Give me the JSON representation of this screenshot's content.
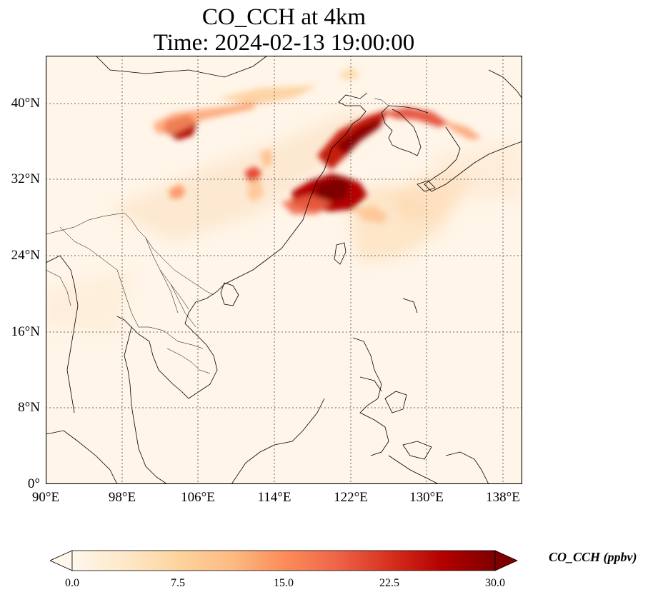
{
  "title": {
    "line1": "CO_CCH at 4km",
    "line2": "Time: 2024-02-13 19:00:00"
  },
  "map": {
    "lon_range": [
      90,
      140
    ],
    "lat_range": [
      0,
      45
    ],
    "projection": "PlateCarree",
    "gridlines": "dotted"
  },
  "axes": {
    "y_ticks": [
      {
        "value": 40,
        "label": "40°N"
      },
      {
        "value": 32,
        "label": "32°N"
      },
      {
        "value": 24,
        "label": "24°N"
      },
      {
        "value": 16,
        "label": "16°N"
      },
      {
        "value": 8,
        "label": "8°N"
      },
      {
        "value": 0,
        "label": "0°"
      }
    ],
    "x_ticks": [
      {
        "value": 90,
        "label": "90°E"
      },
      {
        "value": 98,
        "label": "98°E"
      },
      {
        "value": 106,
        "label": "106°E"
      },
      {
        "value": 114,
        "label": "114°E"
      },
      {
        "value": 122,
        "label": "122°E"
      },
      {
        "value": 130,
        "label": "130°E"
      },
      {
        "value": 138,
        "label": "138°E"
      }
    ]
  },
  "colorbar": {
    "label": "CO_CCH (ppbv)",
    "min": 0,
    "max": 30,
    "ticks": [
      {
        "value": 0,
        "label": "0.0"
      },
      {
        "value": 7.5,
        "label": "7.5"
      },
      {
        "value": 15,
        "label": "15.0"
      },
      {
        "value": 22.5,
        "label": "22.5"
      },
      {
        "value": 30,
        "label": "30.0"
      }
    ],
    "colors": [
      "#fff7ec",
      "#fee8c8",
      "#fdd49e",
      "#fdbb84",
      "#fc8d59",
      "#ef6548",
      "#d7301f",
      "#b30000",
      "#7f0000"
    ],
    "extend": "both"
  },
  "plumes": [
    {
      "name": "plume-north-china-west",
      "lon": 105.5,
      "lat": 37.3,
      "value": 30
    },
    {
      "name": "plume-yangtze-delta",
      "lon": 120,
      "lat": 31,
      "value": 30
    },
    {
      "name": "plume-yellow-sea",
      "lon": 122.5,
      "lat": 35,
      "value": 26
    },
    {
      "name": "plume-korea-japan-sea",
      "lon": 128,
      "lat": 38.5,
      "value": 20
    },
    {
      "name": "plume-central-china",
      "lon": 112.5,
      "lat": 32.5,
      "value": 18
    },
    {
      "name": "plume-sichuan",
      "lon": 103.5,
      "lat": 31,
      "value": 10
    }
  ]
}
